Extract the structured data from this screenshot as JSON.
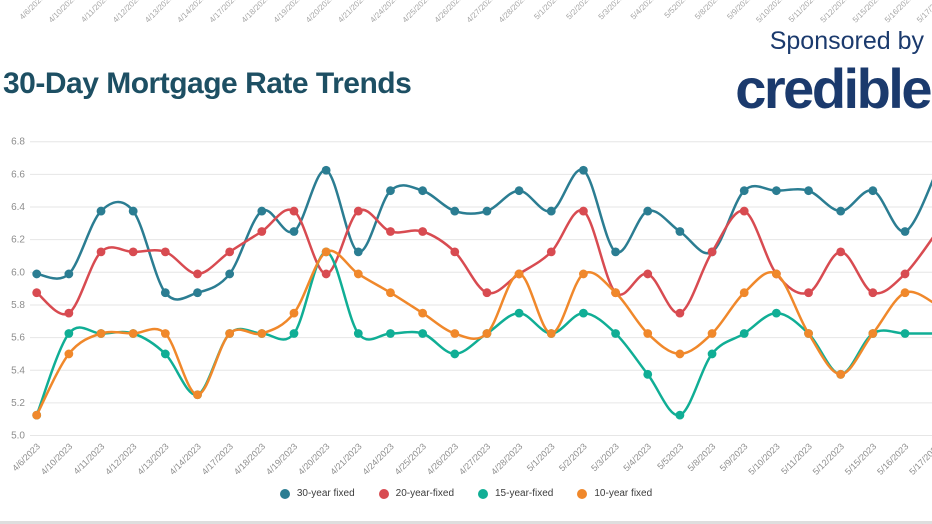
{
  "page": {
    "title": "30-Day Mortgage Rate Trends",
    "sponsored_by": "Sponsored by",
    "brand": "credible"
  },
  "colors": {
    "title_text": "#1d4f63",
    "brand_text": "#1b3a6d",
    "grid_line": "#e6e6e6",
    "y_tick_text": "#8d8d8d",
    "x_tick_text": "#8d8d8d",
    "top_tick_text": "#a6a6a6",
    "legend_text": "#3c3c3c",
    "bottom_bar": "#dedede"
  },
  "chart_data": {
    "type": "line",
    "title": "30-Day Mortgage Rate Trends",
    "xlabel": "",
    "ylabel": "",
    "ylim": [
      5.0,
      6.8
    ],
    "y_ticks": [
      "6.8",
      "6.6",
      "6.4",
      "6.2",
      "6.0",
      "5.8",
      "5.6",
      "5.4",
      "5.2",
      "5.0"
    ],
    "grid": "horizontal",
    "legend_position": "bottom",
    "top_axis_repeated_dates": true,
    "x": [
      "4/6/2023",
      "4/10/2023",
      "4/11/2023",
      "4/12/2023",
      "4/13/2023",
      "4/14/2023",
      "4/17/2023",
      "4/18/2023",
      "4/19/2023",
      "4/20/2023",
      "4/21/2023",
      "4/24/2023",
      "4/25/2023",
      "4/26/2023",
      "4/27/2023",
      "4/28/2023",
      "5/1/2023",
      "5/2/2023",
      "5/3/2023",
      "5/4/2023",
      "5/52023",
      "5/8/2023",
      "5/9/2023",
      "5/10/2023",
      "5/11/2023",
      "5/12/2023",
      "5/15/2023",
      "5/16/2023",
      "5/17/2023"
    ],
    "series": [
      {
        "name": "30-year fixed",
        "color": "#2b7d92",
        "values": [
          5.99,
          5.99,
          6.375,
          6.375,
          5.875,
          5.875,
          5.99,
          6.375,
          6.25,
          6.625,
          6.125,
          6.5,
          6.5,
          6.375,
          6.375,
          6.5,
          6.375,
          6.625,
          6.125,
          6.375,
          6.25,
          6.125,
          6.5,
          6.5,
          6.5,
          6.375,
          6.5,
          6.25,
          6.625
        ]
      },
      {
        "name": "20-year-fixed",
        "color": "#d84b51",
        "values": [
          5.875,
          5.75,
          6.125,
          6.125,
          6.125,
          5.99,
          6.125,
          6.25,
          6.375,
          5.99,
          6.375,
          6.25,
          6.25,
          6.125,
          5.875,
          5.99,
          6.125,
          6.375,
          5.875,
          5.99,
          5.75,
          6.125,
          6.375,
          5.99,
          5.875,
          6.125,
          5.875,
          5.99,
          6.25
        ]
      },
      {
        "name": "15-year-fixed",
        "color": "#10ae95",
        "values": [
          5.125,
          5.625,
          5.625,
          5.625,
          5.5,
          5.25,
          5.625,
          5.625,
          5.625,
          6.125,
          5.625,
          5.625,
          5.625,
          5.5,
          5.625,
          5.75,
          5.625,
          5.75,
          5.625,
          5.375,
          5.125,
          5.5,
          5.625,
          5.75,
          5.625,
          5.375,
          5.625,
          5.625,
          5.625
        ]
      },
      {
        "name": "10-year fixed",
        "color": "#f0882b",
        "values": [
          5.125,
          5.5,
          5.625,
          5.625,
          5.625,
          5.25,
          5.625,
          5.625,
          5.75,
          6.125,
          5.99,
          5.875,
          5.75,
          5.625,
          5.625,
          5.99,
          5.625,
          5.99,
          5.875,
          5.625,
          5.5,
          5.625,
          5.875,
          5.99,
          5.625,
          5.375,
          5.625,
          5.875,
          5.8
        ]
      }
    ]
  }
}
